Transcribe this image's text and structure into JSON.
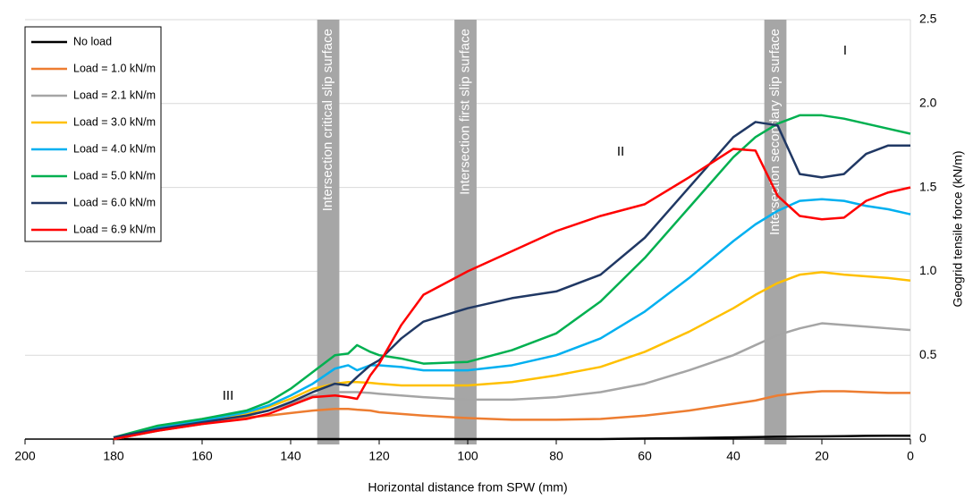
{
  "chart_data": {
    "type": "line",
    "x_label": "Horizontal distance from SPW (mm)",
    "y_label": "Geogrid tensile force (kN/m)",
    "x": [
      180,
      170,
      160,
      150,
      145,
      140,
      135,
      130,
      127,
      125,
      122,
      120,
      115,
      110,
      100,
      90,
      80,
      70,
      60,
      50,
      40,
      35,
      30,
      25,
      20,
      15,
      10,
      5,
      0
    ],
    "series": [
      {
        "name": "No load",
        "color": "#000000",
        "values": [
          0,
          0,
          0,
          0,
          0,
          0,
          0,
          0,
          0,
          0,
          0,
          0,
          0,
          0,
          0,
          0,
          0,
          0,
          0.003,
          0.006,
          0.01,
          0.012,
          0.014,
          0.015,
          0.016,
          0.017,
          0.019,
          0.02,
          0.02
        ]
      },
      {
        "name": "Load = 1.0 kN/m",
        "color": "#ed7d31",
        "values": [
          0,
          0.05,
          0.09,
          0.13,
          0.14,
          0.155,
          0.17,
          0.18,
          0.18,
          0.175,
          0.17,
          0.16,
          0.15,
          0.14,
          0.125,
          0.115,
          0.115,
          0.12,
          0.14,
          0.17,
          0.21,
          0.23,
          0.26,
          0.275,
          0.285,
          0.285,
          0.28,
          0.275,
          0.275
        ]
      },
      {
        "name": "Load = 2.1 kN/m",
        "color": "#a5a5a5",
        "values": [
          0,
          0.05,
          0.095,
          0.14,
          0.17,
          0.21,
          0.26,
          0.28,
          0.28,
          0.28,
          0.275,
          0.27,
          0.26,
          0.25,
          0.235,
          0.235,
          0.25,
          0.28,
          0.33,
          0.41,
          0.5,
          0.56,
          0.62,
          0.66,
          0.69,
          0.68,
          0.67,
          0.66,
          0.65
        ]
      },
      {
        "name": "Load = 3.0 kN/m",
        "color": "#ffc000",
        "values": [
          0.01,
          0.06,
          0.1,
          0.15,
          0.19,
          0.24,
          0.3,
          0.33,
          0.34,
          0.34,
          0.335,
          0.33,
          0.32,
          0.32,
          0.32,
          0.34,
          0.38,
          0.43,
          0.52,
          0.64,
          0.78,
          0.86,
          0.93,
          0.98,
          0.995,
          0.98,
          0.97,
          0.96,
          0.945
        ]
      },
      {
        "name": "Load = 4.0 kN/m",
        "color": "#00b0f0",
        "values": [
          0.01,
          0.07,
          0.11,
          0.16,
          0.2,
          0.26,
          0.33,
          0.42,
          0.44,
          0.41,
          0.44,
          0.44,
          0.43,
          0.41,
          0.41,
          0.44,
          0.5,
          0.6,
          0.76,
          0.96,
          1.18,
          1.28,
          1.36,
          1.42,
          1.43,
          1.42,
          1.39,
          1.37,
          1.34
        ]
      },
      {
        "name": "Load = 5.0 kN/m",
        "color": "#00b050",
        "values": [
          0.01,
          0.08,
          0.12,
          0.17,
          0.22,
          0.3,
          0.4,
          0.5,
          0.51,
          0.56,
          0.52,
          0.5,
          0.48,
          0.45,
          0.46,
          0.53,
          0.63,
          0.82,
          1.08,
          1.38,
          1.68,
          1.8,
          1.88,
          1.93,
          1.93,
          1.91,
          1.88,
          1.85,
          1.82
        ]
      },
      {
        "name": "Load = 6.0 kN/m",
        "color": "#203864",
        "values": [
          0.01,
          0.06,
          0.1,
          0.14,
          0.17,
          0.22,
          0.28,
          0.33,
          0.32,
          0.37,
          0.44,
          0.47,
          0.6,
          0.7,
          0.78,
          0.84,
          0.88,
          0.98,
          1.2,
          1.5,
          1.8,
          1.89,
          1.87,
          1.58,
          1.56,
          1.58,
          1.7,
          1.75,
          1.75
        ]
      },
      {
        "name": "Load = 6.9 kN/m",
        "color": "#ff0000",
        "values": [
          0,
          0.05,
          0.09,
          0.12,
          0.15,
          0.2,
          0.25,
          0.26,
          0.25,
          0.24,
          0.38,
          0.45,
          0.68,
          0.86,
          1.0,
          1.12,
          1.24,
          1.33,
          1.4,
          1.56,
          1.73,
          1.72,
          1.45,
          1.33,
          1.31,
          1.32,
          1.42,
          1.47,
          1.5
        ]
      }
    ],
    "xlim": [
      200,
      0
    ],
    "xticks": [
      200,
      180,
      160,
      140,
      120,
      100,
      80,
      60,
      40,
      20,
      0
    ],
    "ylim": [
      0,
      2.5
    ],
    "yticks": [
      0,
      0.5,
      {
        "value": 1,
        "label": "1.0"
      },
      1.5,
      {
        "value": 2,
        "label": "2.0"
      },
      2.5
    ],
    "grid": true,
    "legend": "upper left",
    "bands": [
      {
        "label": "Intersection critical slip surface",
        "x0": 134,
        "x1": 129
      },
      {
        "label": "Intersection first slip surface",
        "x0": 103,
        "x1": 98
      },
      {
        "label": "Intersection secondary slip surface",
        "x0": 33,
        "x1": 28
      }
    ],
    "annotations": [
      "I",
      "II",
      "III"
    ]
  }
}
